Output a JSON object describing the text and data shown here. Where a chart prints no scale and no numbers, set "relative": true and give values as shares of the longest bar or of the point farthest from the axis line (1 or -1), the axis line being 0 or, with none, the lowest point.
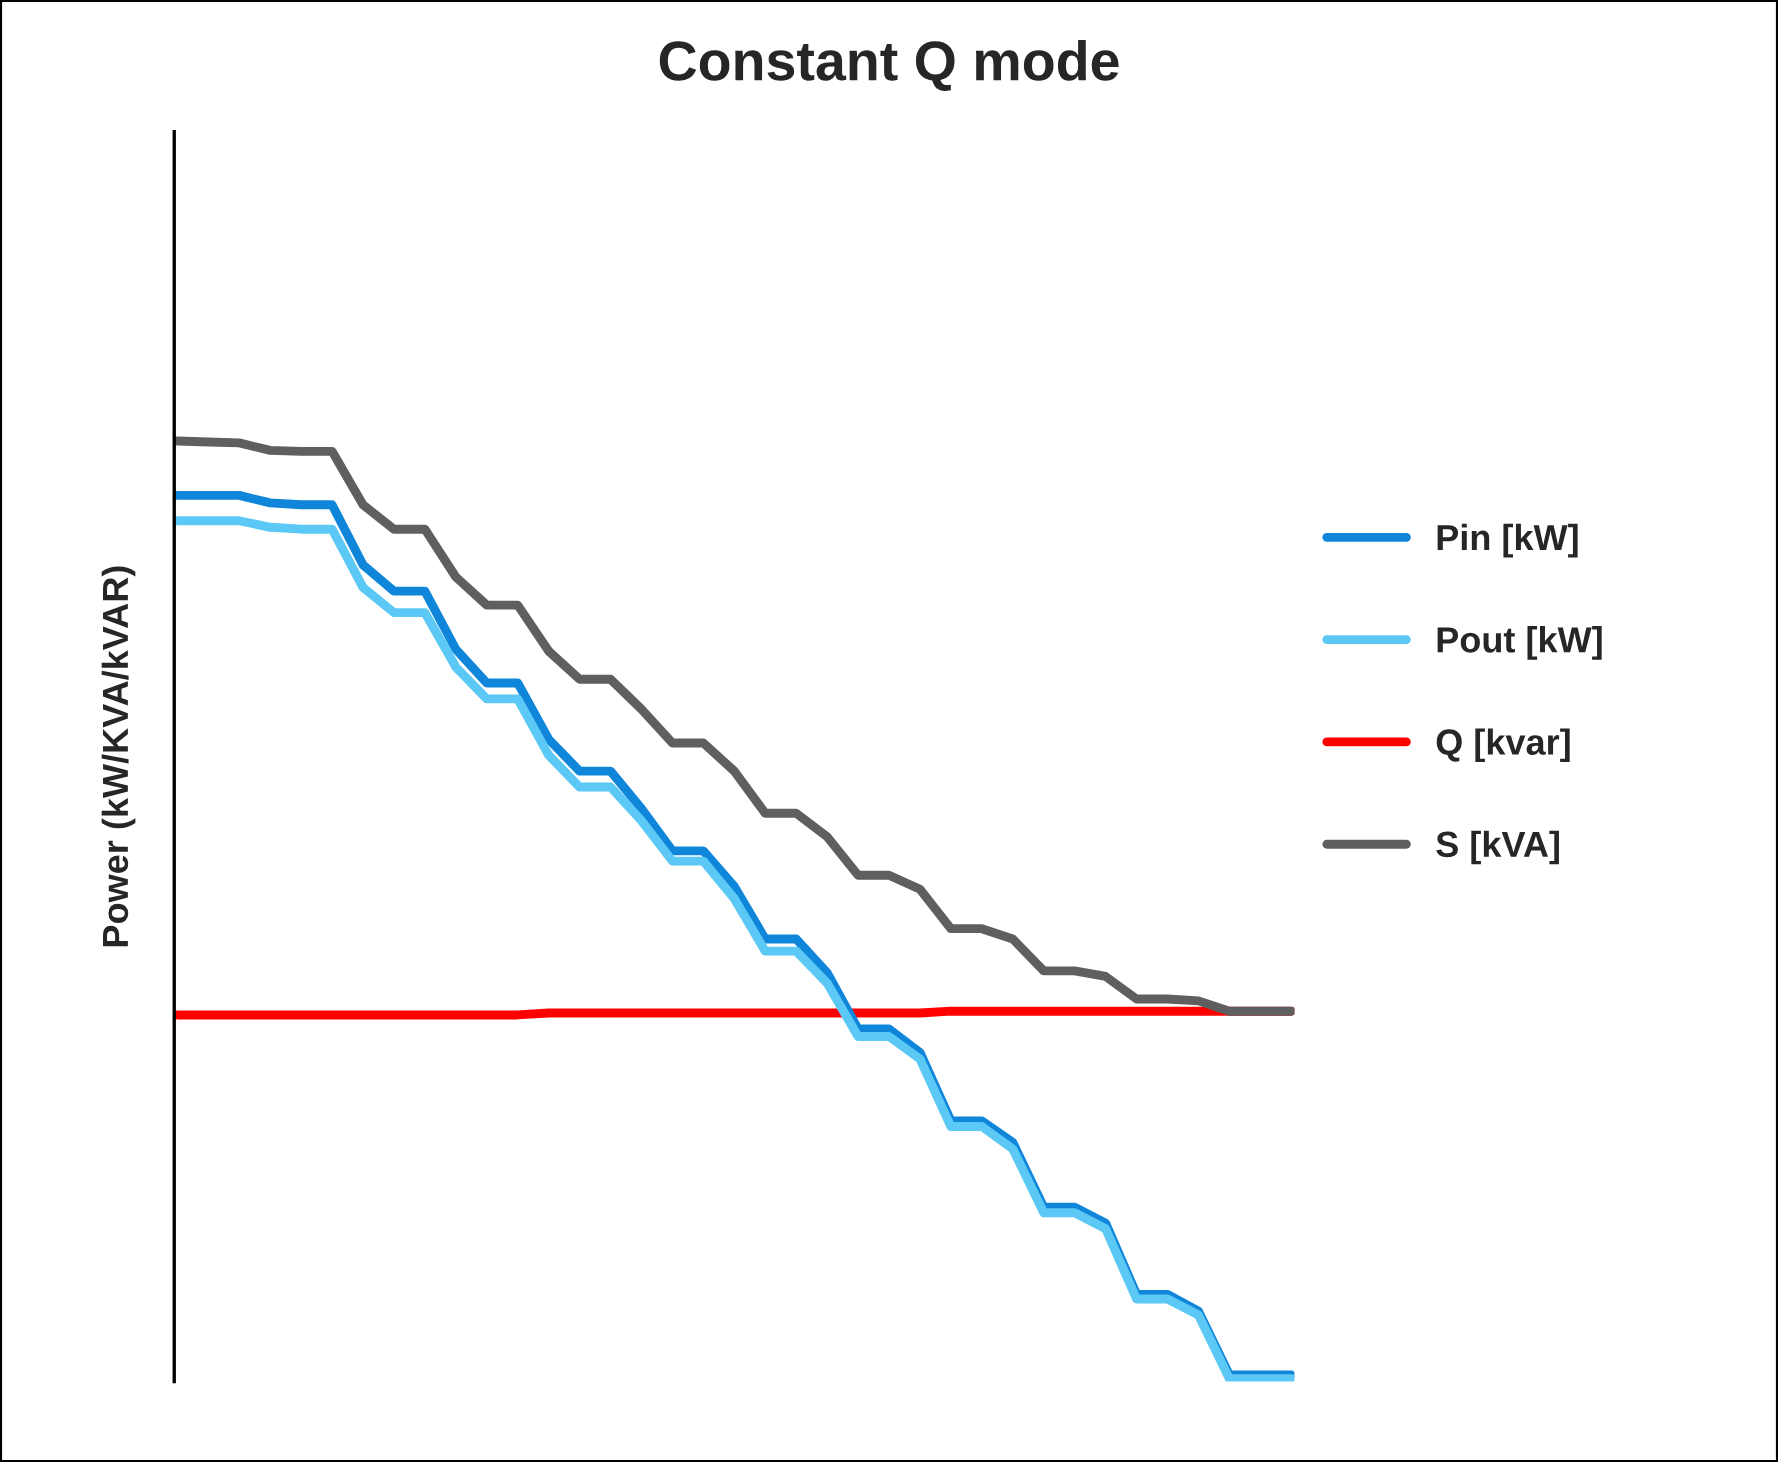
{
  "chart_data": {
    "type": "line",
    "title": "Constant Q mode",
    "ylabel": "Power (kW/KVA/kVAR)",
    "relative": true,
    "legend": "right",
    "line_style": "solid",
    "marker": "none",
    "categories": [
      null,
      null,
      null,
      null,
      null,
      null,
      null,
      null,
      null,
      null,
      null,
      null,
      null,
      null,
      null,
      null,
      null,
      null,
      null,
      null,
      null,
      null,
      null,
      null,
      null,
      null,
      null,
      null,
      null,
      null,
      null,
      null,
      null,
      null,
      null,
      null,
      null
    ],
    "series": [
      {
        "name": "Pin [kW]",
        "color": "#0f86d9",
        "values": [
          0.942,
          0.942,
          0.942,
          0.934,
          0.932,
          0.932,
          0.868,
          0.84,
          0.84,
          0.778,
          0.742,
          0.742,
          0.682,
          0.648,
          0.648,
          0.608,
          0.563,
          0.563,
          0.525,
          0.469,
          0.469,
          0.433,
          0.373,
          0.373,
          0.348,
          0.275,
          0.275,
          0.252,
          0.183,
          0.183,
          0.166,
          0.09,
          0.09,
          0.072,
          0.004,
          0.004,
          0.004
        ]
      },
      {
        "name": "Pout [kW]",
        "color": "#5cc8f5",
        "values": [
          0.915,
          0.915,
          0.915,
          0.908,
          0.906,
          0.906,
          0.844,
          0.817,
          0.817,
          0.759,
          0.725,
          0.725,
          0.665,
          0.631,
          0.631,
          0.595,
          0.552,
          0.552,
          0.512,
          0.456,
          0.456,
          0.422,
          0.365,
          0.365,
          0.341,
          0.269,
          0.269,
          0.245,
          0.177,
          0.177,
          0.16,
          0.085,
          0.085,
          0.068,
          0,
          0,
          0
        ]
      },
      {
        "name": "Q [kvar]",
        "color": "#ff0000",
        "values": [
          0.388,
          0.388,
          0.388,
          0.388,
          0.388,
          0.388,
          0.388,
          0.388,
          0.388,
          0.388,
          0.388,
          0.388,
          0.39,
          0.39,
          0.39,
          0.39,
          0.39,
          0.39,
          0.39,
          0.39,
          0.39,
          0.39,
          0.39,
          0.39,
          0.39,
          0.392,
          0.392,
          0.392,
          0.392,
          0.392,
          0.392,
          0.392,
          0.392,
          0.392,
          0.392,
          0.392,
          0.392
        ]
      },
      {
        "name": "S [kVA]",
        "color": "#5f5f5f",
        "values": [
          1.0,
          0.999,
          0.998,
          0.99,
          0.989,
          0.989,
          0.932,
          0.906,
          0.906,
          0.855,
          0.825,
          0.825,
          0.776,
          0.746,
          0.746,
          0.714,
          0.678,
          0.678,
          0.648,
          0.603,
          0.603,
          0.578,
          0.537,
          0.537,
          0.522,
          0.48,
          0.48,
          0.469,
          0.435,
          0.435,
          0.429,
          0.405,
          0.405,
          0.403,
          0.392,
          0.392,
          0.392
        ]
      }
    ]
  }
}
